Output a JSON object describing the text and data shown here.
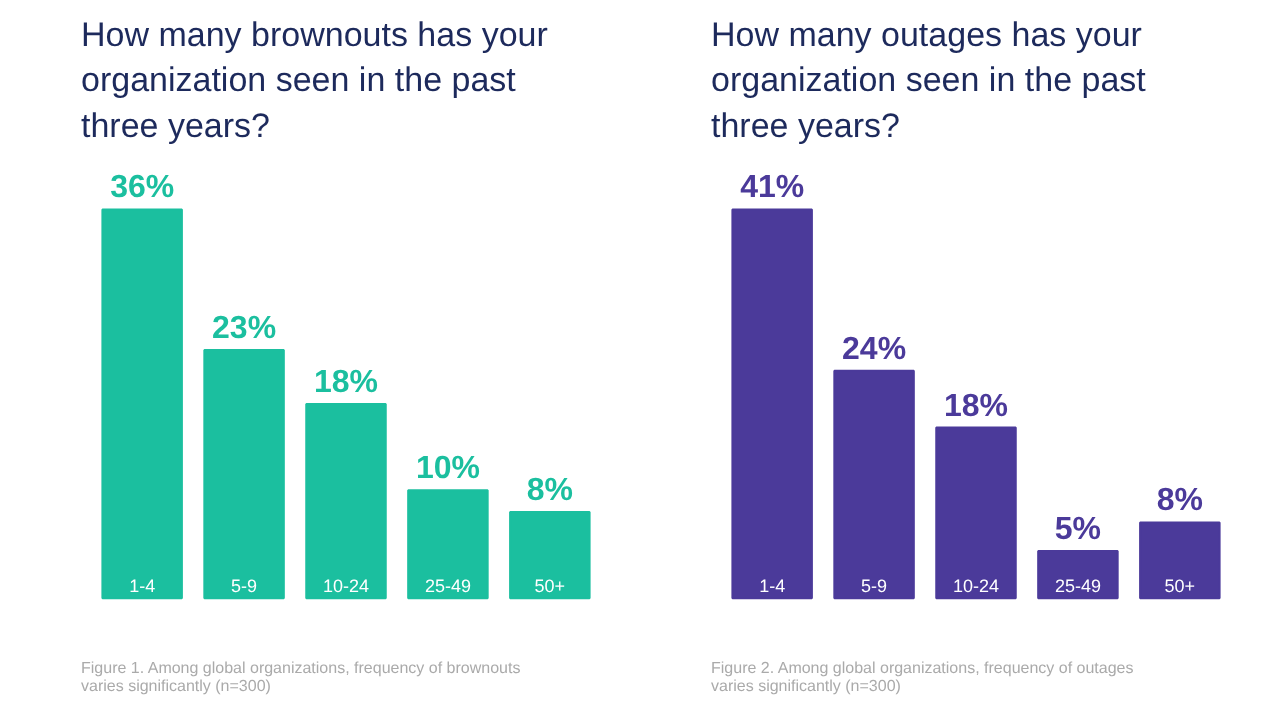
{
  "chart_data": [
    {
      "type": "bar",
      "title": "How many brownouts has your organization seen in the past three years?",
      "categories": [
        "1-4",
        "5-9",
        "10-24",
        "25-49",
        "50+"
      ],
      "values": [
        36,
        23,
        18,
        10,
        8
      ],
      "value_labels": [
        "36%",
        "23%",
        "18%",
        "10%",
        "8%"
      ],
      "color": "#1bbf9f",
      "annotations": [
        "Figure 1. Among global organizations, frequency of brownouts varies significantly (n=300)"
      ]
    },
    {
      "type": "bar",
      "title": "How many outages has your organization seen in the past three years?",
      "categories": [
        "1-4",
        "5-9",
        "10-24",
        "25-49",
        "50+"
      ],
      "values": [
        41,
        24,
        18,
        5,
        8
      ],
      "value_labels": [
        "41%",
        "24%",
        "18%",
        "5%",
        "8%"
      ],
      "color": "#4b3a9a",
      "annotations": [
        "Figure 2. Among global organizations, frequency of outages varies significantly (n=300)"
      ]
    }
  ]
}
